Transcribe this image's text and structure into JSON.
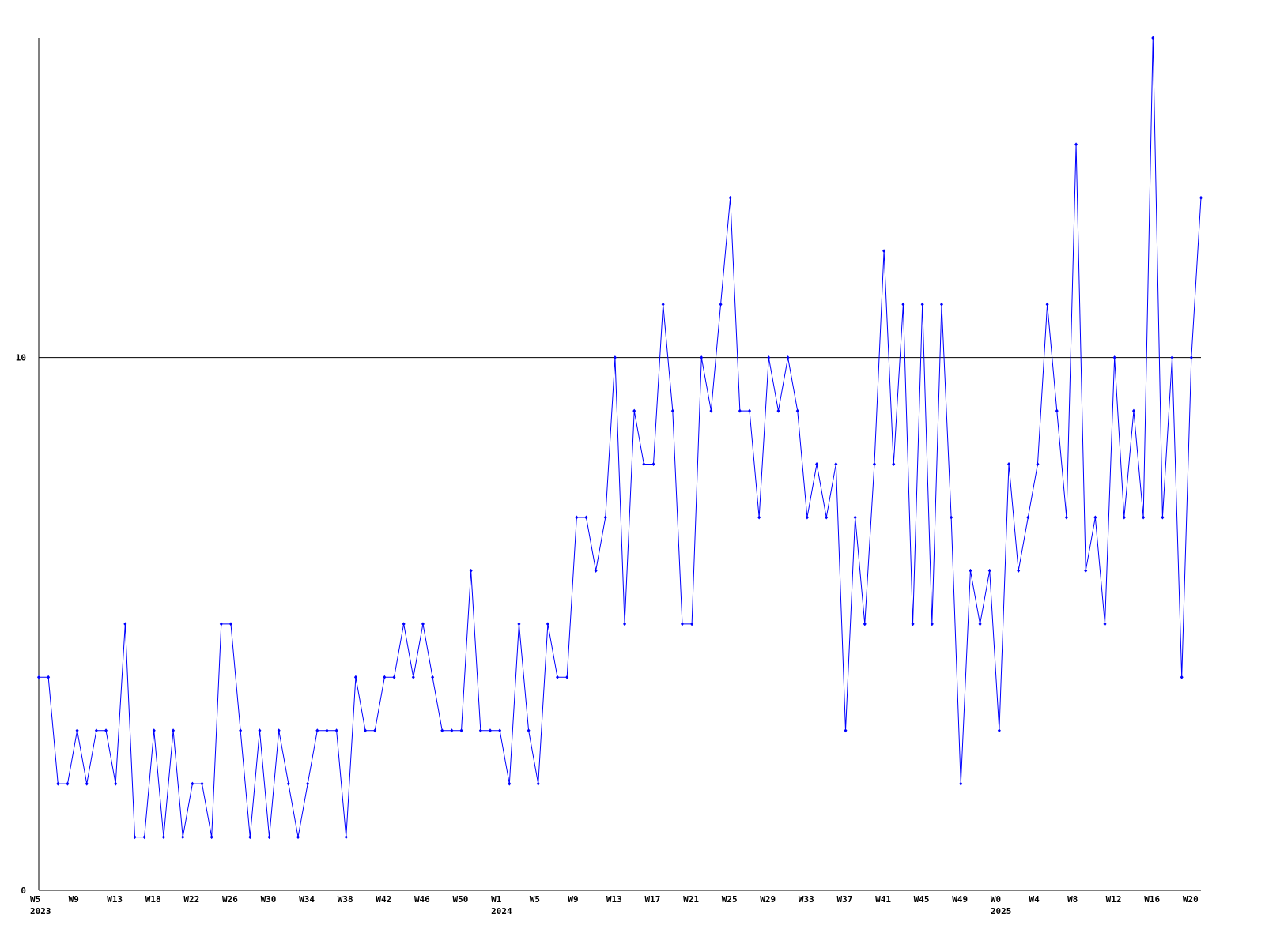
{
  "chart_data": {
    "type": "line",
    "categories": [
      "W5",
      null,
      null,
      null,
      "W9",
      null,
      null,
      null,
      "W13",
      null,
      null,
      null,
      "W18",
      null,
      null,
      null,
      "W22",
      null,
      null,
      null,
      "W26",
      null,
      null,
      null,
      "W30",
      null,
      null,
      null,
      "W34",
      null,
      null,
      null,
      "W38",
      null,
      null,
      null,
      "W42",
      null,
      null,
      null,
      "W46",
      null,
      null,
      null,
      "W50",
      null,
      null,
      null,
      "W1",
      null,
      null,
      null,
      "W5",
      null,
      null,
      null,
      "W9",
      null,
      null,
      null,
      "W13",
      null,
      null,
      null,
      "W17",
      null,
      null,
      null,
      "W21",
      null,
      null,
      null,
      "W25",
      null,
      null,
      null,
      "W29",
      null,
      null,
      null,
      "W33",
      null,
      null,
      null,
      "W37",
      null,
      null,
      null,
      "W41",
      null,
      null,
      null,
      "W45",
      null,
      null,
      null,
      "W49",
      null,
      null,
      null,
      "W0",
      null,
      null,
      null,
      "W4",
      null,
      null,
      null,
      "W8",
      null,
      null,
      null,
      "W12",
      null,
      null,
      null,
      "W16",
      null,
      null,
      null,
      "W20",
      null
    ],
    "year_labels": [
      "2023",
      null,
      null,
      null,
      null,
      null,
      null,
      null,
      null,
      null,
      null,
      null,
      null,
      null,
      null,
      null,
      null,
      null,
      null,
      null,
      null,
      null,
      null,
      null,
      null,
      null,
      null,
      null,
      null,
      null,
      null,
      null,
      null,
      null,
      null,
      null,
      null,
      null,
      null,
      null,
      null,
      null,
      null,
      null,
      null,
      null,
      null,
      null,
      "2024",
      null,
      null,
      null,
      null,
      null,
      null,
      null,
      null,
      null,
      null,
      null,
      null,
      null,
      null,
      null,
      null,
      null,
      null,
      null,
      null,
      null,
      null,
      null,
      null,
      null,
      null,
      null,
      null,
      null,
      null,
      null,
      null,
      null,
      null,
      null,
      null,
      null,
      null,
      null,
      null,
      null,
      null,
      null,
      null,
      null,
      null,
      null,
      null,
      null,
      null,
      null,
      "2025",
      null,
      null,
      null,
      null,
      null,
      null,
      null,
      null,
      null,
      null,
      null,
      null,
      null,
      null,
      null,
      null,
      null,
      null,
      null,
      null,
      null
    ],
    "values": [
      4,
      4,
      2,
      2,
      3,
      2,
      3,
      3,
      2,
      5,
      1,
      1,
      3,
      1,
      3,
      1,
      2,
      2,
      1,
      5,
      5,
      3,
      1,
      3,
      1,
      3,
      2,
      1,
      2,
      3,
      3,
      3,
      1,
      4,
      3,
      3,
      4,
      4,
      5,
      4,
      5,
      4,
      3,
      3,
      3,
      6,
      3,
      3,
      3,
      2,
      5,
      3,
      2,
      5,
      4,
      4,
      7,
      7,
      6,
      7,
      10,
      5,
      9,
      8,
      8,
      11,
      9,
      5,
      5,
      10,
      9,
      11,
      13,
      9,
      9,
      7,
      10,
      9,
      10,
      9,
      7,
      8,
      7,
      8,
      3,
      7,
      5,
      8,
      12,
      8,
      11,
      5,
      11,
      5,
      11,
      7,
      2,
      6,
      5,
      6,
      3,
      8,
      6,
      7,
      8,
      11,
      9,
      7,
      14,
      6,
      7,
      5,
      10,
      7,
      9,
      7,
      16,
      7,
      10,
      4,
      10,
      13
    ],
    "color": "#0000ff",
    "ylim": [
      0,
      16
    ],
    "yticks": [
      0,
      10
    ],
    "grid": true
  }
}
